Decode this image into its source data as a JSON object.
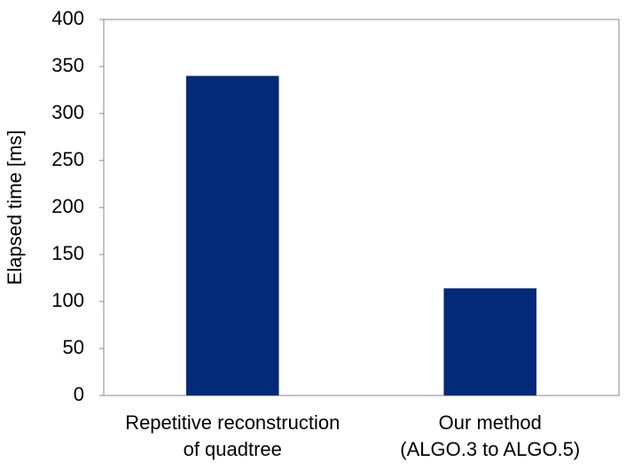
{
  "chart_data": {
    "type": "bar",
    "y_label": "Elapsed time [ms]",
    "categories": [
      "Repetitive reconstruction\nof quadtree",
      "Our method\n(ALGO.3 to ALGO.5)"
    ],
    "values": [
      340,
      114
    ],
    "color": "#022a78",
    "ylim": [
      0,
      400
    ],
    "yticks": [
      0,
      50,
      100,
      150,
      200,
      250,
      300,
      350,
      400
    ],
    "grid": false
  }
}
